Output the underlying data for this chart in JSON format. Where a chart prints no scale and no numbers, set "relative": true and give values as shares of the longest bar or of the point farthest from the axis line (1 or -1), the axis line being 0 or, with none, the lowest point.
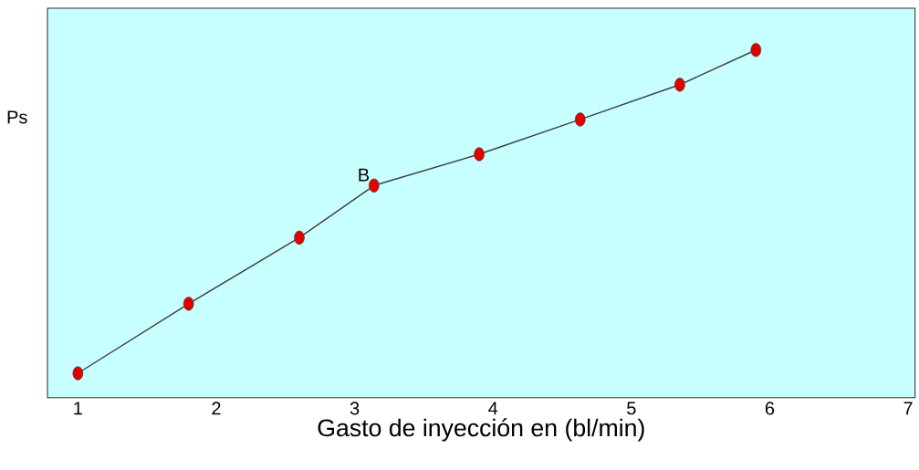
{
  "chart_data": {
    "type": "line",
    "xlabel": "Gasto de inyección en (bl/min)",
    "ylabel": "Ps",
    "relative": true,
    "x": [
      1.0,
      1.8,
      2.6,
      3.14,
      3.9,
      4.63,
      5.35,
      5.9
    ],
    "series": [
      {
        "color": "#e00000",
        "values": [
          0.07,
          0.27,
          0.46,
          0.61,
          0.7,
          0.8,
          0.9,
          1.0
        ]
      }
    ],
    "annotations": [
      {
        "text": "B",
        "x": 3.14,
        "y": 0.61
      }
    ],
    "xlim": [
      0.78,
      7.05
    ],
    "xticks": [
      1,
      2,
      3,
      4,
      5,
      6,
      7
    ],
    "marker": "circle"
  }
}
